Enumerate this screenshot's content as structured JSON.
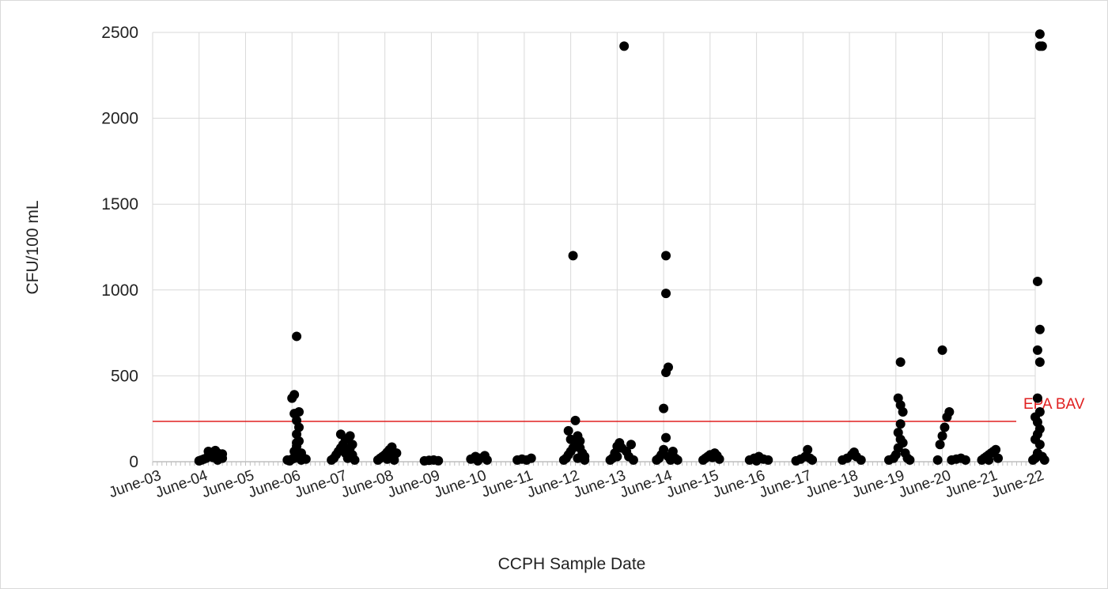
{
  "chart_data": {
    "type": "scatter",
    "xlabel": "CCPH Sample Date",
    "ylabel": "CFU/100 mL",
    "ylim": [
      0,
      2500
    ],
    "y_ticks": [
      "0",
      "500",
      "1000",
      "1500",
      "2000",
      "2500"
    ],
    "categories": [
      "June-03",
      "June-04",
      "June-05",
      "June-06",
      "June-07",
      "June-08",
      "June-09",
      "June-10",
      "June-11",
      "June-12",
      "June-13",
      "June-14",
      "June-15",
      "June-16",
      "June-17",
      "June-18",
      "June-19",
      "June-20",
      "June-21",
      "June-22"
    ],
    "grid": "vertical and horizontal",
    "marker_color": "#000000",
    "reference_line": {
      "label": "EPA BAV",
      "value": 235,
      "color": "#e02020"
    },
    "series": [
      {
        "points": [
          [
            1.0,
            5
          ],
          [
            1.05,
            10
          ],
          [
            1.1,
            15
          ],
          [
            1.15,
            20
          ],
          [
            1.2,
            30
          ],
          [
            1.25,
            40
          ],
          [
            1.3,
            55
          ],
          [
            1.35,
            65
          ],
          [
            1.4,
            50
          ],
          [
            1.45,
            35
          ],
          [
            1.5,
            20
          ],
          [
            1.2,
            60
          ],
          [
            1.3,
            25
          ],
          [
            1.4,
            10
          ],
          [
            1.5,
            45
          ],
          [
            2.9,
            10
          ],
          [
            2.95,
            5
          ],
          [
            3.0,
            15
          ],
          [
            3.05,
            20
          ],
          [
            3.1,
            30
          ],
          [
            3.05,
            60
          ],
          [
            3.1,
            90
          ],
          [
            3.15,
            120
          ],
          [
            3.1,
            160
          ],
          [
            3.15,
            200
          ],
          [
            3.1,
            240
          ],
          [
            3.05,
            280
          ],
          [
            3.15,
            290
          ],
          [
            3.0,
            370
          ],
          [
            3.05,
            390
          ],
          [
            3.1,
            730
          ],
          [
            3.2,
            10
          ],
          [
            3.25,
            20
          ],
          [
            3.3,
            15
          ],
          [
            3.1,
            110
          ],
          [
            3.2,
            50
          ],
          [
            3.85,
            10
          ],
          [
            3.9,
            20
          ],
          [
            3.95,
            40
          ],
          [
            4.0,
            60
          ],
          [
            4.05,
            80
          ],
          [
            4.1,
            100
          ],
          [
            4.15,
            130
          ],
          [
            4.05,
            160
          ],
          [
            4.25,
            150
          ],
          [
            4.15,
            50
          ],
          [
            4.2,
            20
          ],
          [
            4.25,
            80
          ],
          [
            4.3,
            40
          ],
          [
            4.35,
            10
          ],
          [
            4.3,
            100
          ],
          [
            4.85,
            10
          ],
          [
            4.9,
            20
          ],
          [
            4.95,
            30
          ],
          [
            5.0,
            40
          ],
          [
            5.05,
            55
          ],
          [
            5.1,
            70
          ],
          [
            5.15,
            85
          ],
          [
            5.1,
            30
          ],
          [
            5.2,
            10
          ],
          [
            5.25,
            50
          ],
          [
            5.05,
            15
          ],
          [
            5.85,
            5
          ],
          [
            5.95,
            8
          ],
          [
            6.05,
            10
          ],
          [
            6.15,
            6
          ],
          [
            6.85,
            15
          ],
          [
            6.95,
            30
          ],
          [
            7.05,
            20
          ],
          [
            7.15,
            35
          ],
          [
            7.2,
            10
          ],
          [
            7.0,
            5
          ],
          [
            7.85,
            10
          ],
          [
            7.95,
            15
          ],
          [
            8.05,
            10
          ],
          [
            8.15,
            20
          ],
          [
            8.85,
            10
          ],
          [
            8.9,
            20
          ],
          [
            8.95,
            40
          ],
          [
            9.0,
            60
          ],
          [
            9.05,
            80
          ],
          [
            9.1,
            100
          ],
          [
            9.0,
            130
          ],
          [
            8.95,
            180
          ],
          [
            9.05,
            1200
          ],
          [
            9.15,
            150
          ],
          [
            9.2,
            120
          ],
          [
            9.1,
            240
          ],
          [
            9.2,
            80
          ],
          [
            9.25,
            50
          ],
          [
            9.3,
            30
          ],
          [
            9.3,
            10
          ],
          [
            9.15,
            20
          ],
          [
            9.85,
            10
          ],
          [
            9.9,
            20
          ],
          [
            9.95,
            50
          ],
          [
            10.0,
            90
          ],
          [
            10.05,
            110
          ],
          [
            10.1,
            80
          ],
          [
            10.15,
            2420
          ],
          [
            10.2,
            60
          ],
          [
            10.25,
            30
          ],
          [
            10.3,
            100
          ],
          [
            10.35,
            10
          ],
          [
            10.0,
            30
          ],
          [
            10.85,
            10
          ],
          [
            10.9,
            20
          ],
          [
            10.95,
            40
          ],
          [
            11.0,
            70
          ],
          [
            11.05,
            140
          ],
          [
            11.0,
            310
          ],
          [
            11.05,
            520
          ],
          [
            11.1,
            550
          ],
          [
            11.05,
            980
          ],
          [
            11.05,
            1200
          ],
          [
            11.1,
            30
          ],
          [
            11.15,
            10
          ],
          [
            11.2,
            60
          ],
          [
            11.25,
            20
          ],
          [
            11.3,
            10
          ],
          [
            11.85,
            10
          ],
          [
            11.9,
            20
          ],
          [
            11.95,
            30
          ],
          [
            12.0,
            40
          ],
          [
            12.05,
            25
          ],
          [
            12.1,
            50
          ],
          [
            12.15,
            35
          ],
          [
            12.2,
            15
          ],
          [
            12.85,
            10
          ],
          [
            12.95,
            20
          ],
          [
            13.05,
            30
          ],
          [
            13.15,
            15
          ],
          [
            13.25,
            10
          ],
          [
            13.0,
            5
          ],
          [
            13.85,
            5
          ],
          [
            13.95,
            15
          ],
          [
            14.05,
            30
          ],
          [
            14.1,
            70
          ],
          [
            14.15,
            20
          ],
          [
            14.2,
            10
          ],
          [
            14.85,
            10
          ],
          [
            14.95,
            20
          ],
          [
            15.05,
            40
          ],
          [
            15.1,
            55
          ],
          [
            15.15,
            30
          ],
          [
            15.25,
            10
          ],
          [
            15.85,
            10
          ],
          [
            15.95,
            20
          ],
          [
            16.0,
            40
          ],
          [
            16.05,
            80
          ],
          [
            16.1,
            130
          ],
          [
            16.05,
            170
          ],
          [
            16.1,
            220
          ],
          [
            16.15,
            290
          ],
          [
            16.1,
            330
          ],
          [
            16.05,
            370
          ],
          [
            16.1,
            580
          ],
          [
            16.15,
            110
          ],
          [
            16.2,
            50
          ],
          [
            16.25,
            20
          ],
          [
            16.3,
            10
          ],
          [
            16.9,
            10
          ],
          [
            16.95,
            100
          ],
          [
            17.0,
            150
          ],
          [
            17.05,
            200
          ],
          [
            17.1,
            260
          ],
          [
            17.15,
            290
          ],
          [
            17.0,
            650
          ],
          [
            17.2,
            10
          ],
          [
            17.3,
            15
          ],
          [
            17.4,
            20
          ],
          [
            17.5,
            10
          ],
          [
            17.85,
            10
          ],
          [
            17.9,
            20
          ],
          [
            17.95,
            30
          ],
          [
            18.0,
            40
          ],
          [
            18.05,
            50
          ],
          [
            18.1,
            60
          ],
          [
            18.15,
            70
          ],
          [
            18.2,
            20
          ],
          [
            18.0,
            10
          ],
          [
            18.95,
            10
          ],
          [
            19.0,
            20
          ],
          [
            19.05,
            50
          ],
          [
            19.1,
            100
          ],
          [
            19.0,
            130
          ],
          [
            19.05,
            160
          ],
          [
            19.1,
            190
          ],
          [
            19.05,
            230
          ],
          [
            19.0,
            260
          ],
          [
            19.1,
            290
          ],
          [
            19.05,
            370
          ],
          [
            19.1,
            580
          ],
          [
            19.05,
            650
          ],
          [
            19.1,
            770
          ],
          [
            19.05,
            1050
          ],
          [
            19.1,
            2420
          ],
          [
            19.15,
            2420
          ],
          [
            19.1,
            2490
          ],
          [
            19.15,
            30
          ],
          [
            19.2,
            10
          ]
        ]
      }
    ]
  }
}
